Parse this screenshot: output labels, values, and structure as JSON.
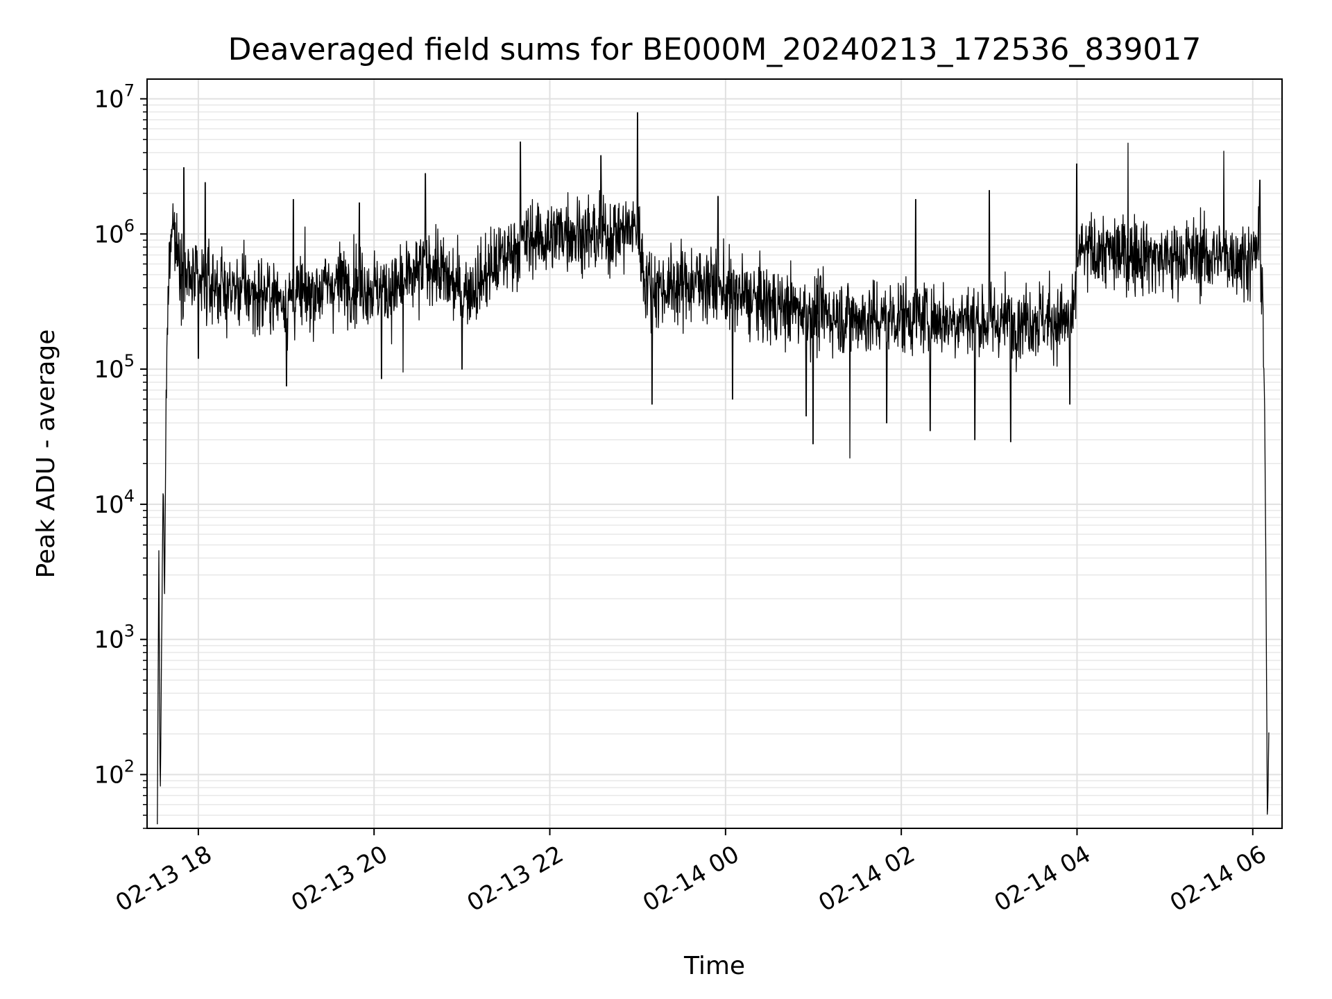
{
  "chart_data": {
    "type": "line",
    "title": "Deaveraged field sums for BE000M_20240213_172536_839017",
    "xlabel": "Time",
    "ylabel": "Peak ADU - average",
    "x_scale": "time",
    "y_scale": "log",
    "xlim": [
      "2024-02-13 17:25",
      "2024-02-14 06:20"
    ],
    "ylim": [
      40,
      14000000
    ],
    "grid": true,
    "legend": "none",
    "line_color": "#000000",
    "x_ticks": [
      {
        "value": "2024-02-13 18:00",
        "label": "02-13 18"
      },
      {
        "value": "2024-02-13 20:00",
        "label": "02-13 20"
      },
      {
        "value": "2024-02-13 22:00",
        "label": "02-13 22"
      },
      {
        "value": "2024-02-14 00:00",
        "label": "02-14 00"
      },
      {
        "value": "2024-02-14 02:00",
        "label": "02-14 02"
      },
      {
        "value": "2024-02-14 04:00",
        "label": "02-14 04"
      },
      {
        "value": "2024-02-14 06:00",
        "label": "02-14 06"
      }
    ],
    "y_ticks": [
      {
        "value": 100,
        "base": "10",
        "exp": "2"
      },
      {
        "value": 1000,
        "base": "10",
        "exp": "3"
      },
      {
        "value": 10000,
        "base": "10",
        "exp": "4"
      },
      {
        "value": 100000,
        "base": "10",
        "exp": "5"
      },
      {
        "value": 1000000,
        "base": "10",
        "exp": "6"
      },
      {
        "value": 10000000,
        "base": "10",
        "exp": "7"
      }
    ],
    "series": [
      {
        "points": [
          [
            "2024-02-13 17:32",
            40
          ],
          [
            "2024-02-13 17:33",
            4300
          ],
          [
            "2024-02-13 17:34",
            60
          ],
          [
            "2024-02-13 17:35",
            1100
          ],
          [
            "2024-02-13 17:36",
            15000
          ],
          [
            "2024-02-13 17:37",
            2000
          ],
          [
            "2024-02-13 17:38",
            60000
          ],
          [
            "2024-02-13 17:40",
            600000
          ],
          [
            "2024-02-13 17:42",
            1500000
          ],
          [
            "2024-02-13 17:45",
            800000
          ],
          [
            "2024-02-13 17:50",
            500000
          ],
          [
            "2024-02-13 18:00",
            420000
          ],
          [
            "2024-02-13 18:10",
            430000
          ],
          [
            "2024-02-13 18:20",
            380000
          ],
          [
            "2024-02-13 18:30",
            390000
          ],
          [
            "2024-02-13 18:40",
            350000
          ],
          [
            "2024-02-13 18:50",
            360000
          ],
          [
            "2024-02-13 19:00",
            330000
          ],
          [
            "2024-02-13 19:10",
            350000
          ],
          [
            "2024-02-13 19:20",
            380000
          ],
          [
            "2024-02-13 19:30",
            420000
          ],
          [
            "2024-02-13 19:40",
            450000
          ],
          [
            "2024-02-13 19:50",
            430000
          ],
          [
            "2024-02-13 20:00",
            400000
          ],
          [
            "2024-02-13 20:10",
            380000
          ],
          [
            "2024-02-13 20:20",
            420000
          ],
          [
            "2024-02-13 20:30",
            500000
          ],
          [
            "2024-02-13 20:40",
            620000
          ],
          [
            "2024-02-13 20:50",
            450000
          ],
          [
            "2024-02-13 21:00",
            380000
          ],
          [
            "2024-02-13 21:10",
            420000
          ],
          [
            "2024-02-13 21:20",
            550000
          ],
          [
            "2024-02-13 21:30",
            700000
          ],
          [
            "2024-02-13 21:40",
            850000
          ],
          [
            "2024-02-13 21:50",
            950000
          ],
          [
            "2024-02-13 22:00",
            900000
          ],
          [
            "2024-02-13 22:10",
            1100000
          ],
          [
            "2024-02-13 22:20",
            1000000
          ],
          [
            "2024-02-13 22:30",
            950000
          ],
          [
            "2024-02-13 22:40",
            1000000
          ],
          [
            "2024-02-13 22:50",
            1050000
          ],
          [
            "2024-02-13 23:00",
            1100000
          ],
          [
            "2024-02-13 23:05",
            450000
          ],
          [
            "2024-02-13 23:15",
            400000
          ],
          [
            "2024-02-13 23:30",
            420000
          ],
          [
            "2024-02-13 23:45",
            450000
          ],
          [
            "2024-02-14 00:00",
            380000
          ],
          [
            "2024-02-14 00:15",
            330000
          ],
          [
            "2024-02-14 00:30",
            300000
          ],
          [
            "2024-02-14 00:45",
            280000
          ],
          [
            "2024-02-14 01:00",
            270000
          ],
          [
            "2024-02-14 01:15",
            250000
          ],
          [
            "2024-02-14 01:30",
            240000
          ],
          [
            "2024-02-14 01:45",
            230000
          ],
          [
            "2024-02-14 02:00",
            250000
          ],
          [
            "2024-02-14 02:15",
            240000
          ],
          [
            "2024-02-14 02:30",
            230000
          ],
          [
            "2024-02-14 02:45",
            240000
          ],
          [
            "2024-02-14 03:00",
            220000
          ],
          [
            "2024-02-14 03:15",
            230000
          ],
          [
            "2024-02-14 03:30",
            240000
          ],
          [
            "2024-02-14 03:45",
            230000
          ],
          [
            "2024-02-14 03:58",
            220000
          ],
          [
            "2024-02-14 04:00",
            700000
          ],
          [
            "2024-02-14 04:15",
            750000
          ],
          [
            "2024-02-14 04:30",
            700000
          ],
          [
            "2024-02-14 04:45",
            720000
          ],
          [
            "2024-02-14 05:00",
            650000
          ],
          [
            "2024-02-14 05:15",
            700000
          ],
          [
            "2024-02-14 05:30",
            680000
          ],
          [
            "2024-02-14 05:45",
            700000
          ],
          [
            "2024-02-14 06:00",
            650000
          ],
          [
            "2024-02-14 06:05",
            900000
          ],
          [
            "2024-02-14 06:07",
            300000
          ],
          [
            "2024-02-14 06:08",
            60000
          ],
          [
            "2024-02-14 06:09",
            3000
          ],
          [
            "2024-02-14 06:10",
            40
          ],
          [
            "2024-02-14 06:11",
            200
          ]
        ],
        "spikes_high": [
          [
            "2024-02-13 17:50",
            3100000
          ],
          [
            "2024-02-13 18:05",
            2400000
          ],
          [
            "2024-02-13 19:05",
            1800000
          ],
          [
            "2024-02-13 19:50",
            1700000
          ],
          [
            "2024-02-13 20:35",
            2800000
          ],
          [
            "2024-02-13 21:40",
            4800000
          ],
          [
            "2024-02-13 22:35",
            3800000
          ],
          [
            "2024-02-13 23:00",
            7900000
          ],
          [
            "2024-02-13 23:55",
            1900000
          ],
          [
            "2024-02-14 02:10",
            1800000
          ],
          [
            "2024-02-14 03:00",
            2100000
          ],
          [
            "2024-02-14 04:00",
            3300000
          ],
          [
            "2024-02-14 04:35",
            4700000
          ],
          [
            "2024-02-14 05:40",
            4100000
          ],
          [
            "2024-02-14 06:05",
            2500000
          ]
        ],
        "spikes_low": [
          [
            "2024-02-13 18:00",
            120000
          ],
          [
            "2024-02-13 19:00",
            75000
          ],
          [
            "2024-02-13 20:05",
            85000
          ],
          [
            "2024-02-13 20:20",
            95000
          ],
          [
            "2024-02-13 21:00",
            100000
          ],
          [
            "2024-02-13 23:10",
            55000
          ],
          [
            "2024-02-14 00:05",
            60000
          ],
          [
            "2024-02-14 00:55",
            45000
          ],
          [
            "2024-02-14 01:00",
            28000
          ],
          [
            "2024-02-14 01:25",
            22000
          ],
          [
            "2024-02-14 01:50",
            40000
          ],
          [
            "2024-02-14 02:20",
            35000
          ],
          [
            "2024-02-14 02:50",
            30000
          ],
          [
            "2024-02-14 03:15",
            29000
          ],
          [
            "2024-02-14 03:55",
            55000
          ]
        ]
      }
    ]
  }
}
